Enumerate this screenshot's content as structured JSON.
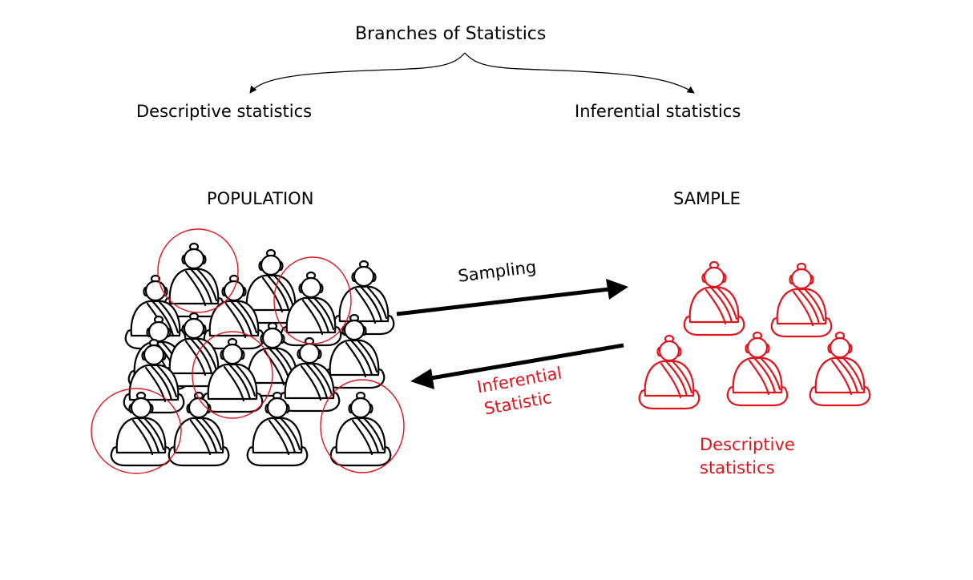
{
  "title": "Branches of Statistics",
  "branches": {
    "left": "Descriptive statistics",
    "right": "Inferential statistics"
  },
  "population": {
    "label": "POPULATION",
    "figure_icon": "meditating-figure-icon",
    "selection_icon": "circle-icon",
    "figure_color": "#000000",
    "selection_color": "#e0141c"
  },
  "sample": {
    "label": "SAMPLE",
    "figure_icon": "meditating-figure-icon",
    "figure_color": "#e0141c"
  },
  "arrows": {
    "sampling": "Sampling",
    "inferential_line1": "Inferential",
    "inferential_line2": "Statistic"
  },
  "sample_caption": {
    "line1": "Descriptive",
    "line2": "statistics"
  },
  "colors": {
    "text": "#000000",
    "accent": "#e0141c"
  }
}
